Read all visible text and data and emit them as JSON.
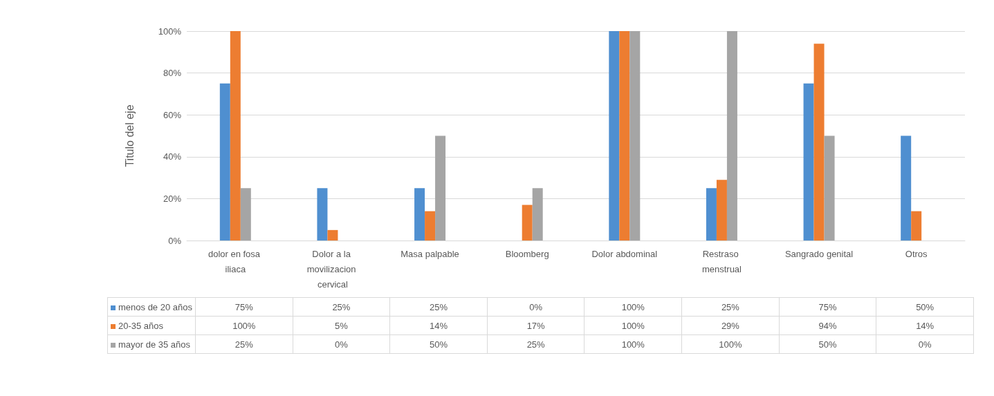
{
  "chart_data": {
    "type": "bar",
    "ylabel": "Titulo del eje",
    "categories": [
      "dolor en fosa iliaca",
      "Dolor a la movilizacion cervical",
      "Masa palpable",
      "Bloomberg",
      "Dolor abdominal",
      "Restraso menstrual",
      "Sangrado genital",
      "Otros"
    ],
    "series": [
      {
        "name": "menos de 20 años",
        "color": "#4f8fd0",
        "values": [
          75,
          25,
          25,
          0,
          100,
          25,
          75,
          50
        ],
        "value_labels": [
          "75%",
          "25%",
          "25%",
          "0%",
          "100%",
          "25%",
          "75%",
          "50%"
        ]
      },
      {
        "name": "20-35 años",
        "color": "#ed7d31",
        "values": [
          100,
          5,
          14,
          17,
          100,
          29,
          94,
          14
        ],
        "value_labels": [
          "100%",
          "5%",
          "14%",
          "17%",
          "100%",
          "29%",
          "94%",
          "14%"
        ]
      },
      {
        "name": "mayor de 35 años",
        "color": "#a5a5a5",
        "values": [
          25,
          0,
          50,
          25,
          100,
          100,
          50,
          0
        ],
        "value_labels": [
          "25%",
          "0%",
          "50%",
          "25%",
          "100%",
          "100%",
          "50%",
          "0%"
        ]
      }
    ],
    "ylim": [
      0,
      100
    ],
    "yticks": [
      {
        "value": 0,
        "label": "0%"
      },
      {
        "value": 20,
        "label": "20%"
      },
      {
        "value": 40,
        "label": "40%"
      },
      {
        "value": 60,
        "label": "60%"
      },
      {
        "value": 80,
        "label": "80%"
      },
      {
        "value": 100,
        "label": "100%"
      }
    ],
    "grid": "y",
    "legend": "bottom"
  }
}
